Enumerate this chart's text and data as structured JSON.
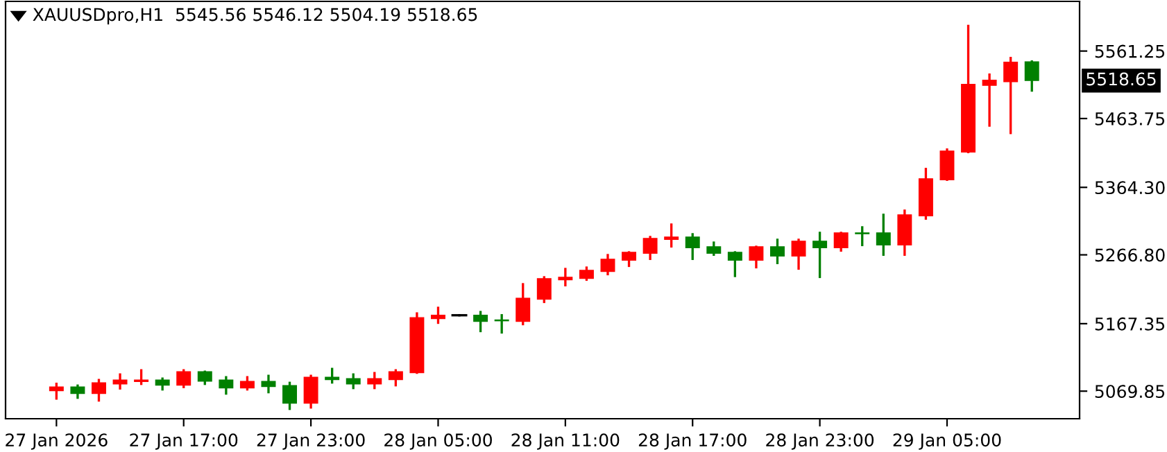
{
  "chart_data": {
    "type": "candlestick",
    "title": "XAUUSDpro,H1  5545.56 5546.12 5504.19 5518.65",
    "categories": [
      "27 Jan 2026",
      null,
      null,
      null,
      null,
      null,
      "27 Jan 17:00",
      null,
      null,
      null,
      null,
      null,
      "27 Jan 23:00",
      null,
      null,
      null,
      null,
      null,
      "28 Jan 05:00",
      null,
      null,
      null,
      null,
      null,
      "28 Jan 11:00",
      null,
      null,
      null,
      null,
      null,
      "28 Jan 17:00",
      null,
      null,
      null,
      null,
      null,
      "28 Jan 23:00",
      null,
      null,
      null,
      null,
      null,
      "29 Jan 05:00",
      null,
      null,
      null,
      null
    ],
    "ohlc": [
      [
        5070.4,
        5080.4,
        5059.2,
        5075.8
      ],
      [
        5075.8,
        5077.8,
        5060.4,
        5066.4
      ],
      [
        5066.4,
        5085.9,
        5056.4,
        5081.8
      ],
      [
        5080.4,
        5093.9,
        5073.8,
        5085.9
      ],
      [
        5083.8,
        5099.9,
        5080.4,
        5085.9
      ],
      [
        5085.9,
        5087.9,
        5072.4,
        5078.4
      ],
      [
        5078.4,
        5099.9,
        5075.8,
        5097.9
      ],
      [
        5097.9,
        5097.9,
        5080.4,
        5084.4
      ],
      [
        5085.9,
        5089.9,
        5066.4,
        5074.4
      ],
      [
        5074.4,
        5089.9,
        5072.4,
        5083.8
      ],
      [
        5083.8,
        5091.9,
        5068.4,
        5076.4
      ],
      [
        5077.8,
        5081.8,
        5044.3,
        5052.4
      ],
      [
        5052.4,
        5091.9,
        5046.3,
        5089.9
      ],
      [
        5089.9,
        5101.9,
        5082.4,
        5086.5
      ],
      [
        5087.9,
        5093.9,
        5074.4,
        5080.4
      ],
      [
        5080.4,
        5095.9,
        5074.4,
        5087.9
      ],
      [
        5086.5,
        5099.9,
        5078.4,
        5097.9
      ],
      [
        5096.5,
        5182.1,
        5096.5,
        5176.1
      ],
      [
        5174.7,
        5190.2,
        5168.7,
        5179.5
      ],
      [
        5179.5,
        5179.5,
        5179.5,
        5179.5
      ],
      [
        5179.5,
        5184.1,
        5156.7,
        5170.7
      ],
      [
        5172.7,
        5179.5,
        5154.7,
        5171.5
      ],
      [
        5170.7,
        5224.3,
        5166.7,
        5204.2
      ],
      [
        5202.8,
        5234.3,
        5198.8,
        5232.3
      ],
      [
        5230.9,
        5246.3,
        5222.9,
        5234.3
      ],
      [
        5232.9,
        5248.3,
        5230.9,
        5244.3
      ],
      [
        5242.9,
        5266.4,
        5238.9,
        5260.4
      ],
      [
        5259.0,
        5270.4,
        5250.9,
        5270.4
      ],
      [
        5269.0,
        5292.5,
        5261.0,
        5290.5
      ],
      [
        5289.1,
        5310.5,
        5279.0,
        5292.5
      ],
      [
        5292.5,
        5296.5,
        5261.0,
        5277.0
      ],
      [
        5278.4,
        5284.4,
        5267.0,
        5269.0
      ],
      [
        5270.4,
        5270.4,
        5236.3,
        5259.0
      ],
      [
        5259.0,
        5278.4,
        5248.9,
        5278.4
      ],
      [
        5278.4,
        5288.5,
        5255.0,
        5265.0
      ],
      [
        5265.0,
        5288.5,
        5246.9,
        5286.5
      ],
      [
        5286.5,
        5298.5,
        5234.9,
        5277.0
      ],
      [
        5277.0,
        5298.5,
        5273.0,
        5298.5
      ],
      [
        5298.5,
        5306.5,
        5281.0,
        5297.3
      ],
      [
        5298.5,
        5324.6,
        5267.0,
        5281.0
      ],
      [
        5281.0,
        5330.6,
        5267.0,
        5324.6
      ],
      [
        5323.2,
        5390.8,
        5319.2,
        5376.7
      ],
      [
        5375.3,
        5418.9,
        5375.3,
        5416.8
      ],
      [
        5415.4,
        5597.4,
        5415.4,
        5513.1
      ],
      [
        5511.7,
        5527.2,
        5453.6,
        5519.2
      ],
      [
        5517.1,
        5551.2,
        5442.9,
        5545.2
      ],
      [
        5545.56,
        5546.12,
        5504.19,
        5518.65
      ]
    ],
    "colors": [
      "#ff0000",
      "#008000",
      "#ff0000",
      "#ff0000",
      "#ff0000",
      "#008000",
      "#ff0000",
      "#008000",
      "#008000",
      "#ff0000",
      "#008000",
      "#008000",
      "#ff0000",
      "#008000",
      "#008000",
      "#ff0000",
      "#ff0000",
      "#ff0000",
      "#ff0000",
      "#000000",
      "#008000",
      "#008000",
      "#ff0000",
      "#ff0000",
      "#ff0000",
      "#ff0000",
      "#ff0000",
      "#ff0000",
      "#ff0000",
      "#ff0000",
      "#008000",
      "#008000",
      "#008000",
      "#ff0000",
      "#008000",
      "#ff0000",
      "#008000",
      "#ff0000",
      "#008000",
      "#008000",
      "#ff0000",
      "#ff0000",
      "#ff0000",
      "#ff0000",
      "#ff0000",
      "#ff0000",
      "#008000"
    ],
    "ylim": [
      5030,
      5633
    ],
    "yticks": [
      5069.85,
      5167.35,
      {
        "value": 5266.8,
        "label": "5266.80"
      },
      {
        "value": 5364.3,
        "label": "5364.30"
      },
      5463.75,
      5561.25
    ],
    "annotations": [
      "5518.65"
    ],
    "grid": false,
    "legend": false
  }
}
